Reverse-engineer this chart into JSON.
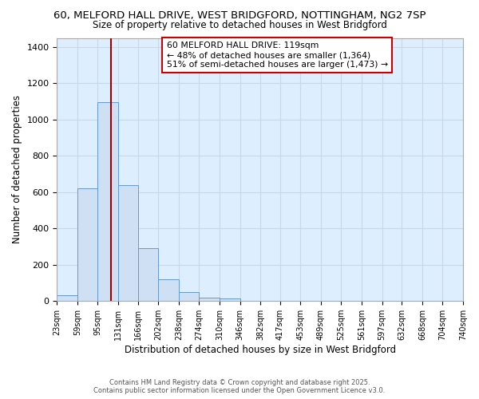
{
  "title_line1": "60, MELFORD HALL DRIVE, WEST BRIDGFORD, NOTTINGHAM, NG2 7SP",
  "title_line2": "Size of property relative to detached houses in West Bridgford",
  "xlabel": "Distribution of detached houses by size in West Bridgford",
  "ylabel": "Number of detached properties",
  "bin_labels": [
    "23sqm",
    "59sqm",
    "95sqm",
    "131sqm",
    "166sqm",
    "202sqm",
    "238sqm",
    "274sqm",
    "310sqm",
    "346sqm",
    "382sqm",
    "417sqm",
    "453sqm",
    "489sqm",
    "525sqm",
    "561sqm",
    "597sqm",
    "632sqm",
    "668sqm",
    "704sqm",
    "740sqm"
  ],
  "bin_edges": [
    23,
    59,
    95,
    131,
    166,
    202,
    238,
    274,
    310,
    346,
    382,
    417,
    453,
    489,
    525,
    561,
    597,
    632,
    668,
    704,
    740
  ],
  "bar_heights": [
    30,
    620,
    1095,
    640,
    290,
    120,
    50,
    20,
    15,
    0,
    0,
    0,
    0,
    0,
    0,
    0,
    0,
    0,
    0,
    0
  ],
  "bar_color": "#cfe0f5",
  "bar_edge_color": "#6699cc",
  "vline_x": 119,
  "vline_color": "#990000",
  "ylim": [
    0,
    1450
  ],
  "yticks": [
    0,
    200,
    400,
    600,
    800,
    1000,
    1200,
    1400
  ],
  "annotation_title": "60 MELFORD HALL DRIVE: 119sqm",
  "annotation_line2": "← 48% of detached houses are smaller (1,364)",
  "annotation_line3": "51% of semi-detached houses are larger (1,473) →",
  "annotation_box_color": "#ffffff",
  "annotation_box_edge": "#cc0000",
  "footer_line1": "Contains HM Land Registry data © Crown copyright and database right 2025.",
  "footer_line2": "Contains public sector information licensed under the Open Government Licence v3.0.",
  "bg_color": "#ffffff",
  "grid_color": "#c8d8e8",
  "plot_bg_color": "#ddeeff"
}
